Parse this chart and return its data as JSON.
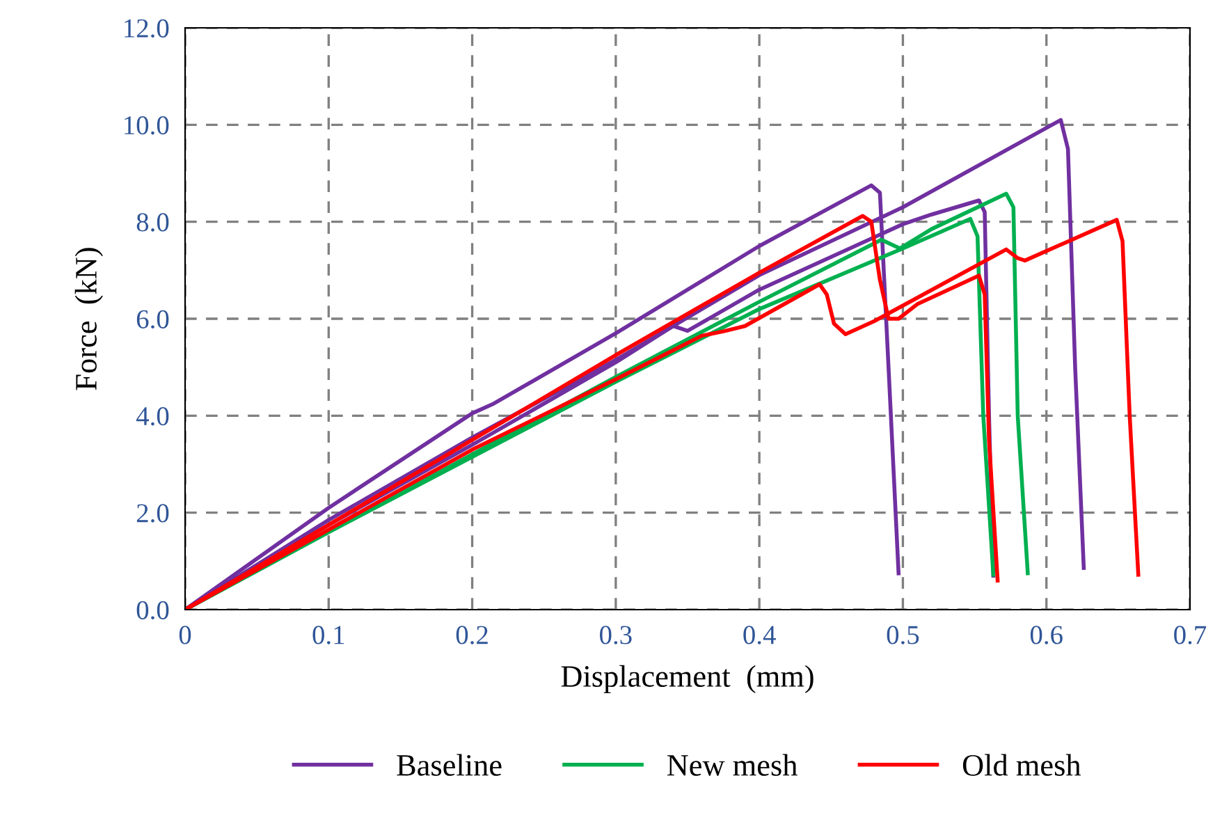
{
  "chart_data": {
    "type": "line",
    "xlabel": "Displacement  (mm)",
    "ylabel": "Force  (kN)",
    "xlim": [
      0,
      0.7
    ],
    "ylim": [
      0,
      12
    ],
    "xticks": [
      0,
      0.1,
      0.2,
      0.3,
      0.4,
      0.5,
      0.6,
      0.7
    ],
    "yticks": [
      {
        "value": 0,
        "label": "0.0"
      },
      {
        "value": 2,
        "label": "2.0"
      },
      {
        "value": 4,
        "label": "4.0"
      },
      {
        "value": 6,
        "label": "6.0"
      },
      {
        "value": 8,
        "label": "8.0"
      },
      {
        "value": 10,
        "label": "10.0"
      },
      {
        "value": 12,
        "label": "12.0"
      }
    ],
    "grid": true,
    "legend": "bottom",
    "marker": "none",
    "line_style": "solid",
    "series": [
      {
        "name": "Baseline",
        "color": "#7030a0",
        "x": [
          0,
          0.1,
          0.2,
          0.215,
          0.3,
          0.4,
          0.478,
          0.484,
          0.49,
          0.497
        ],
        "values": [
          0,
          2.1,
          4.05,
          4.25,
          5.7,
          7.5,
          8.75,
          8.6,
          5,
          0.75
        ]
      },
      {
        "color": "#7030a0",
        "x": [
          0,
          0.1,
          0.2,
          0.3,
          0.4,
          0.5,
          0.61,
          0.615,
          0.62,
          0.626
        ],
        "values": [
          0,
          1.85,
          3.55,
          5.15,
          6.9,
          8.3,
          10.1,
          9.5,
          5,
          0.86
        ]
      },
      {
        "color": "#7030a0",
        "x": [
          0,
          0.1,
          0.2,
          0.3,
          0.34,
          0.35,
          0.4,
          0.5,
          0.52,
          0.553,
          0.557,
          0.56,
          0.563
        ],
        "values": [
          0,
          1.75,
          3.4,
          5.1,
          5.85,
          5.75,
          6.6,
          7.95,
          8.15,
          8.44,
          8.2,
          4,
          0.7
        ]
      },
      {
        "name": "New mesh",
        "color": "#00b050",
        "x": [
          0,
          0.1,
          0.2,
          0.3,
          0.4,
          0.485,
          0.498,
          0.52,
          0.572,
          0.577,
          0.58,
          0.587
        ],
        "values": [
          0,
          1.6,
          3.2,
          4.8,
          6.35,
          7.63,
          7.45,
          7.85,
          8.58,
          8.3,
          4,
          0.75
        ]
      },
      {
        "color": "#00b050",
        "x": [
          0,
          0.1,
          0.2,
          0.3,
          0.4,
          0.5,
          0.547,
          0.552,
          0.556,
          0.563
        ],
        "values": [
          0,
          1.6,
          3.15,
          4.7,
          6.2,
          7.45,
          8.06,
          7.7,
          4,
          0.72
        ]
      },
      {
        "name": "Old mesh",
        "color": "#ff0000",
        "x": [
          0,
          0.1,
          0.2,
          0.3,
          0.4,
          0.472,
          0.478,
          0.484,
          0.49,
          0.497,
          0.51,
          0.553,
          0.557,
          0.56,
          0.566
        ],
        "values": [
          0,
          1.75,
          3.5,
          5.25,
          6.95,
          8.12,
          8.0,
          6.8,
          6.0,
          6.0,
          6.3,
          6.89,
          6.5,
          3.5,
          0.6
        ]
      },
      {
        "color": "#ff0000",
        "x": [
          0,
          0.1,
          0.2,
          0.3,
          0.36,
          0.375,
          0.39,
          0.442,
          0.447,
          0.452,
          0.46,
          0.48,
          0.572,
          0.58,
          0.585,
          0.649,
          0.653,
          0.658,
          0.664
        ],
        "values": [
          0,
          1.65,
          3.3,
          4.75,
          5.65,
          5.74,
          5.85,
          6.71,
          6.5,
          5.9,
          5.68,
          5.95,
          7.43,
          7.25,
          7.2,
          8.04,
          7.6,
          4,
          0.72
        ]
      }
    ]
  }
}
